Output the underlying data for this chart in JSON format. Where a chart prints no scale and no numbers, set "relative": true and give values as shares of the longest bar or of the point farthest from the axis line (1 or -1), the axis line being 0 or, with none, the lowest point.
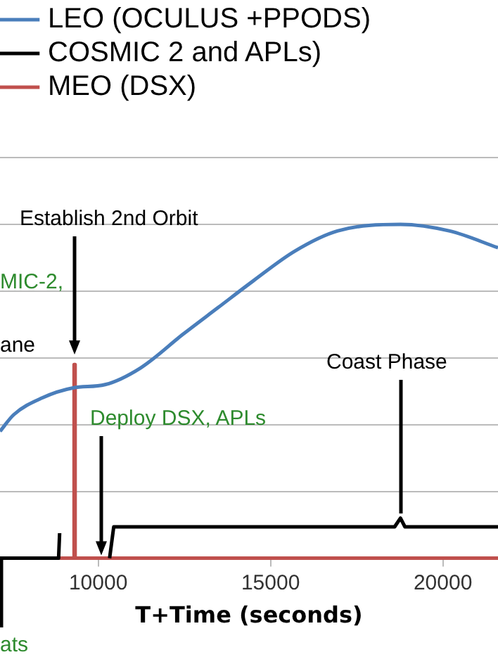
{
  "chart_data": {
    "type": "line",
    "relative": true,
    "xlabel": "T+Time (seconds)",
    "xlim": [
      7150,
      21600
    ],
    "xticks": [
      10000,
      15000,
      20000
    ],
    "grid": "y",
    "legend": "top left",
    "marker": "none",
    "line_style": "solid",
    "series": [
      {
        "name": "LEO (OCULUS +PPODS)",
        "color": "#4a7ebb",
        "x": [
          7150,
          7550,
          8370,
          9270,
          10200,
          11230,
          12450,
          13470,
          14490,
          15710,
          16940,
          18770,
          20200,
          21600
        ],
        "values": [
          0.38,
          0.43,
          0.48,
          0.51,
          0.52,
          0.57,
          0.67,
          0.75,
          0.83,
          0.92,
          0.98,
          1,
          0.98,
          0.93
        ]
      },
      {
        "name": "COSMIC 2 and APLs)",
        "color": "#000000",
        "x": [
          7150,
          8850,
          8880,
          9600,
          10330,
          10450,
          18600,
          18770,
          18900,
          21600
        ],
        "values": [
          0,
          0,
          0.075,
          null,
          0,
          0.094,
          0.094,
          0.12,
          0.094,
          0.094
        ]
      },
      {
        "name": "MEO (DSX)",
        "color": "#c0504d",
        "x": [
          7150,
          9300,
          9300,
          9330,
          9330,
          21600
        ],
        "values": [
          0,
          0,
          0.58,
          0.58,
          0,
          0
        ]
      }
    ],
    "annotations": [
      "Establish 2nd Orbit",
      "MIC-2,",
      "ane",
      "Deploy DSX, APLs",
      "Coast Phase",
      "ats"
    ]
  }
}
